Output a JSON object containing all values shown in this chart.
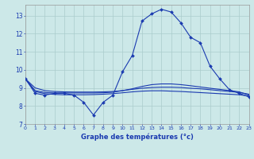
{
  "xlabel": "Graphe des températures (°c)",
  "background_color": "#cce8e8",
  "line_color": "#1a3ab0",
  "grid_color": "#aacccc",
  "xmin": 0,
  "xmax": 23,
  "ymin": 7,
  "ymax": 13.6,
  "yticks": [
    7,
    8,
    9,
    10,
    11,
    12,
    13
  ],
  "hours": [
    0,
    1,
    2,
    3,
    4,
    5,
    6,
    7,
    8,
    9,
    10,
    11,
    12,
    13,
    14,
    15,
    16,
    17,
    18,
    19,
    20,
    21,
    22,
    23
  ],
  "temp_main": [
    9.5,
    8.7,
    8.6,
    8.7,
    8.7,
    8.6,
    8.2,
    7.5,
    8.2,
    8.6,
    9.9,
    10.8,
    12.7,
    13.1,
    13.35,
    13.2,
    12.6,
    11.8,
    11.5,
    10.2,
    9.5,
    8.9,
    8.7,
    8.5
  ],
  "temp_line2": [
    9.5,
    8.85,
    8.75,
    8.72,
    8.72,
    8.72,
    8.72,
    8.72,
    8.73,
    8.76,
    8.85,
    8.95,
    9.08,
    9.18,
    9.22,
    9.22,
    9.18,
    9.12,
    9.05,
    8.98,
    8.92,
    8.85,
    8.78,
    8.6
  ],
  "temp_line3": [
    9.5,
    8.8,
    8.68,
    8.64,
    8.62,
    8.62,
    8.62,
    8.63,
    8.65,
    8.68,
    8.73,
    8.78,
    8.82,
    8.84,
    8.84,
    8.82,
    8.8,
    8.77,
    8.74,
    8.71,
    8.68,
    8.65,
    8.62,
    8.55
  ],
  "temp_line4": [
    9.5,
    9.0,
    8.85,
    8.8,
    8.78,
    8.77,
    8.77,
    8.77,
    8.78,
    8.8,
    8.85,
    8.92,
    8.98,
    9.02,
    9.04,
    9.04,
    9.02,
    8.98,
    8.95,
    8.9,
    8.85,
    8.8,
    8.75,
    8.65
  ]
}
